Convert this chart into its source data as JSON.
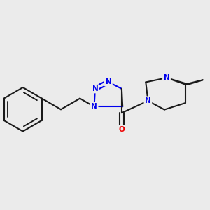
{
  "bg_color": "#ebebeb",
  "bond_color": "#1a1a1a",
  "nitrogen_color": "#0000ee",
  "oxygen_color": "#ee0000",
  "lw": 1.5,
  "fs": 7.5,
  "xlim": [
    -1.0,
    8.5
  ],
  "ylim": [
    -2.5,
    3.5
  ]
}
